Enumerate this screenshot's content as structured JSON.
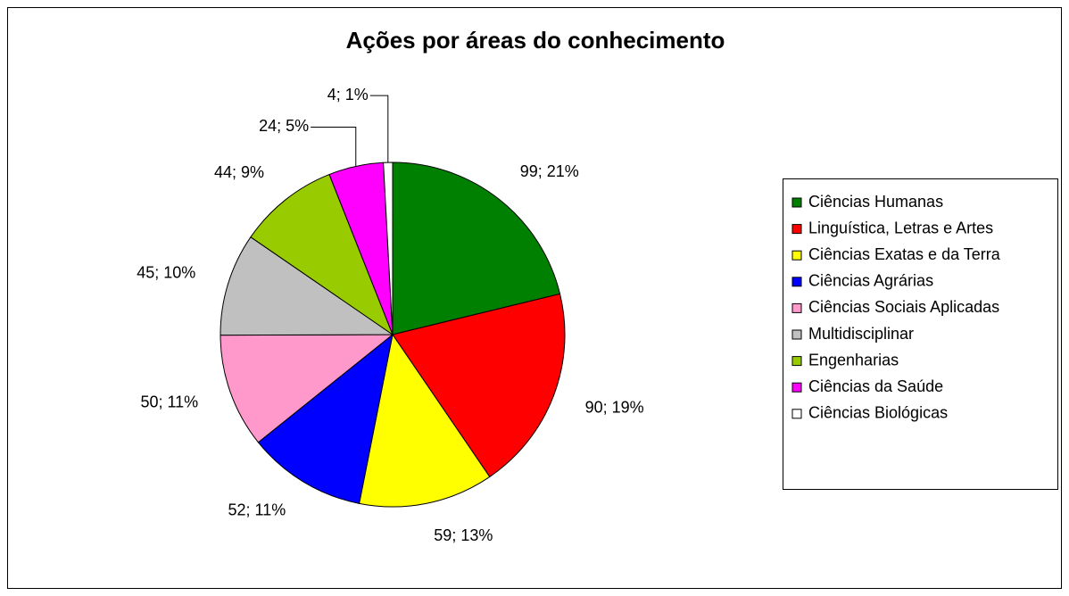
{
  "chart_data": {
    "type": "pie",
    "title": "Ações por áreas do conhecimento",
    "categories": [
      "Ciências Humanas",
      "Linguística, Letras e Artes",
      "Ciências Exatas e da Terra",
      "Ciências Agrárias",
      "Ciências Sociais Aplicadas",
      "Multidisciplinar",
      "Engenharias",
      "Ciências da Saúde",
      "Ciências Biológicas"
    ],
    "values": [
      99,
      90,
      59,
      52,
      50,
      45,
      44,
      24,
      4
    ],
    "value_labels": [
      "99; 21%",
      "90; 19%",
      "59; 13%",
      "52; 11%",
      "50; 11%",
      "45; 10%",
      "44; 9%",
      "24; 5%",
      "4; 1%"
    ],
    "colors": [
      "#008000",
      "#ff0000",
      "#ffff00",
      "#0000ff",
      "#ff99cc",
      "#c0c0c0",
      "#99cc00",
      "#ff00ff",
      "#ffffff"
    ],
    "legend": "right"
  }
}
